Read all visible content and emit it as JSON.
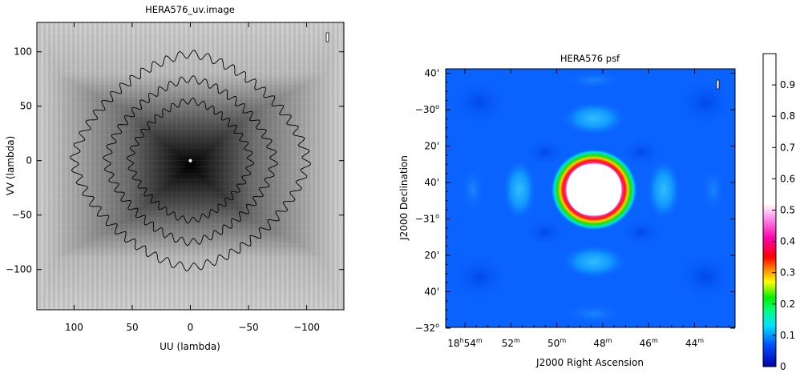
{
  "chart_data": [
    {
      "type": "heatmap",
      "title": "HERA576_uv.image",
      "xlabel": "UU (lambda)",
      "ylabel": "VV (lambda)",
      "xlim": [
        132,
        -132
      ],
      "ylim": [
        -137,
        127
      ],
      "x_ticks": [
        100,
        50,
        0,
        -50,
        -100
      ],
      "x_tick_labels": [
        "100",
        "50",
        "0",
        "−50",
        "−100"
      ],
      "y_ticks": [
        -100,
        -50,
        0,
        50,
        100
      ],
      "y_tick_labels": [
        "−100",
        "−50",
        "0",
        "50",
        "100"
      ],
      "colormap": "grayscale",
      "contours": [
        {
          "u_half_width": 100,
          "v_half_height": 98
        },
        {
          "u_half_width": 72,
          "v_half_height": 75
        },
        {
          "u_half_width": 52,
          "v_half_height": 55
        }
      ],
      "center_marker": [
        0,
        0
      ]
    },
    {
      "type": "heatmap",
      "title": "HERA576 psf",
      "xlabel": "J2000 Right Ascension",
      "ylabel": "J2000 Declination",
      "x_ticks": [
        {
          "pre": "18",
          "h": "h",
          "min": "54",
          "m": "m"
        },
        {
          "pre": "",
          "h": "",
          "min": "52",
          "m": "m"
        },
        {
          "pre": "",
          "h": "",
          "min": "50",
          "m": "m"
        },
        {
          "pre": "",
          "h": "",
          "min": "48",
          "m": "m"
        },
        {
          "pre": "",
          "h": "",
          "min": "46",
          "m": "m"
        },
        {
          "pre": "",
          "h": "",
          "min": "44",
          "m": "m"
        }
      ],
      "y_ticks": [
        {
          "main": "−32",
          "sup": "o"
        },
        {
          "main": "40'",
          "sup": ""
        },
        {
          "main": "20'",
          "sup": ""
        },
        {
          "main": "−31",
          "sup": "o"
        },
        {
          "main": "40'",
          "sup": ""
        },
        {
          "main": "20'",
          "sup": ""
        },
        {
          "main": "−30",
          "sup": "o"
        },
        {
          "main": "40'",
          "sup": ""
        }
      ],
      "colormap": "rainbow",
      "colorbar": {
        "range": [
          0,
          1
        ],
        "ticks": [
          0,
          0.1,
          0.2,
          0.3,
          0.4,
          0.5,
          0.6,
          0.7,
          0.8,
          0.9
        ],
        "tick_labels": [
          "0",
          "0.1",
          "0.2",
          "0.3",
          "0.4",
          "0.5",
          "0.6",
          "0.7",
          "0.8",
          "0.9"
        ]
      },
      "main_lobe_peak": 1.0,
      "sidelobe_level": 0.12
    }
  ]
}
